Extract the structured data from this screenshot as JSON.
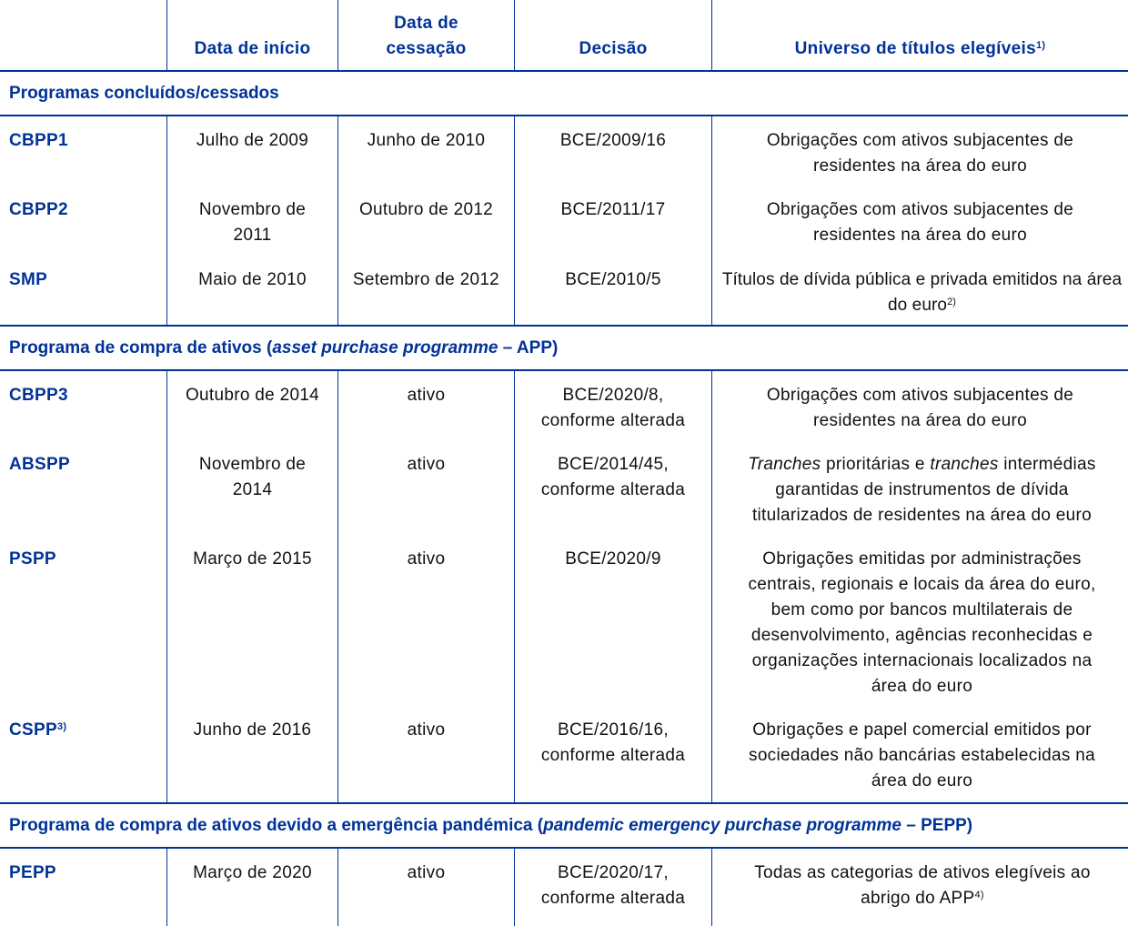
{
  "headers": {
    "col1": "Data de início",
    "col2a": "Data de",
    "col2b": "cessação",
    "col3": "Decisão",
    "col4": "Universo de títulos elegíveis",
    "col4_note": "1)"
  },
  "sections": [
    {
      "title": "Programas concluídos/cessados"
    },
    {
      "title_a": "Programa de compra de ativos (",
      "title_i": "asset purchase programme",
      "title_b": " – APP)"
    },
    {
      "title_a": "Programa de compra de ativos devido a emergência pandémica (",
      "title_i": "pandemic emergency purchase programme",
      "title_b": " – PEPP)"
    }
  ],
  "rows": {
    "cbpp1": {
      "name": "CBPP1",
      "start": "Julho de 2009",
      "end": "Junho de 2010",
      "decision": "BCE/2009/16",
      "universe": "Obrigações com ativos subjacentes de residentes na área do euro"
    },
    "cbpp2": {
      "name": "CBPP2",
      "start": "Novembro de 2011",
      "end": "Outubro de 2012",
      "decision": "BCE/2011/17",
      "universe": "Obrigações com ativos subjacentes de residentes na área do euro"
    },
    "smp": {
      "name": "SMP",
      "start": "Maio de 2010",
      "end": "Setembro de 2012",
      "decision": "BCE/2010/5",
      "universe": "Títulos de dívida pública e privada emitidos na área do euro",
      "note": "2)"
    },
    "cbpp3": {
      "name": "CBPP3",
      "start": "Outubro de 2014",
      "end": "ativo",
      "decision": "BCE/2020/8, conforme alterada",
      "universe": "Obrigações com ativos subjacentes de residentes na área do euro"
    },
    "abspp": {
      "name": "ABSPP",
      "start": "Novembro de 2014",
      "end": "ativo",
      "decision": "BCE/2014/45, conforme alterada",
      "u_i1": "Tranches",
      "u_1": " prioritárias e ",
      "u_i2": "tranches",
      "u_2": " intermédias garantidas de instrumentos de dívida titularizados de residentes na área do euro"
    },
    "pspp": {
      "name": "PSPP",
      "start": "Março de 2015",
      "end": "ativo",
      "decision": "BCE/2020/9",
      "universe": "Obrigações emitidas por administrações centrais, regionais e locais da área do euro, bem como por bancos multilaterais de desenvolvimento, agências reconhecidas e organizações internacionais localizados na área do euro"
    },
    "cspp": {
      "name": "CSPP",
      "name_note": "3)",
      "start": "Junho de 2016",
      "end": "ativo",
      "decision": "BCE/2016/16, conforme alterada",
      "universe": "Obrigações e papel comercial emitidos por sociedades não bancárias estabelecidas na área do euro"
    },
    "pepp": {
      "name": "PEPP",
      "start": "Março de 2020",
      "end": "ativo",
      "decision": "BCE/2020/17, conforme alterada",
      "universe": "Todas as categorias de ativos elegíveis ao abrigo do APP",
      "note": "4)"
    }
  }
}
